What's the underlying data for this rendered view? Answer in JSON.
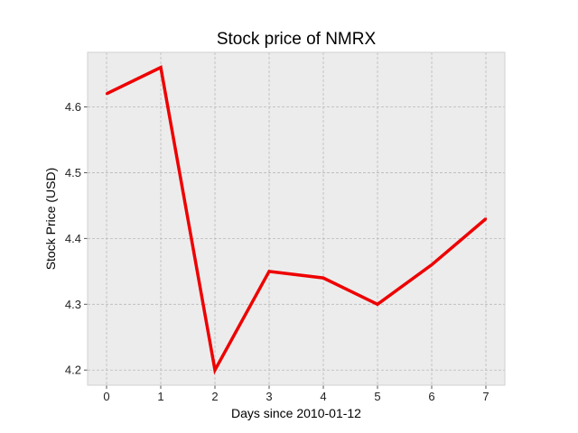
{
  "chart_data": {
    "type": "line",
    "title": "Stock price of NMRX",
    "xlabel": "Days since 2010-01-12",
    "ylabel": "Stock Price (USD)",
    "x": [
      0,
      1,
      2,
      3,
      4,
      5,
      6,
      7
    ],
    "series": [
      {
        "values": [
          4.62,
          4.66,
          4.2,
          4.35,
          4.34,
          4.3,
          4.36,
          4.43
        ],
        "color": "#ee0000"
      }
    ],
    "xticks": [
      "0",
      "1",
      "2",
      "3",
      "4",
      "5",
      "6",
      "7"
    ],
    "yticks": [
      "4.2",
      "4.3",
      "4.4",
      "4.5",
      "4.6"
    ],
    "xlim": [
      -0.35,
      7.35
    ],
    "ylim": [
      4.177,
      4.683
    ],
    "grid": true,
    "legend": "none",
    "background_color": "#ececec"
  }
}
